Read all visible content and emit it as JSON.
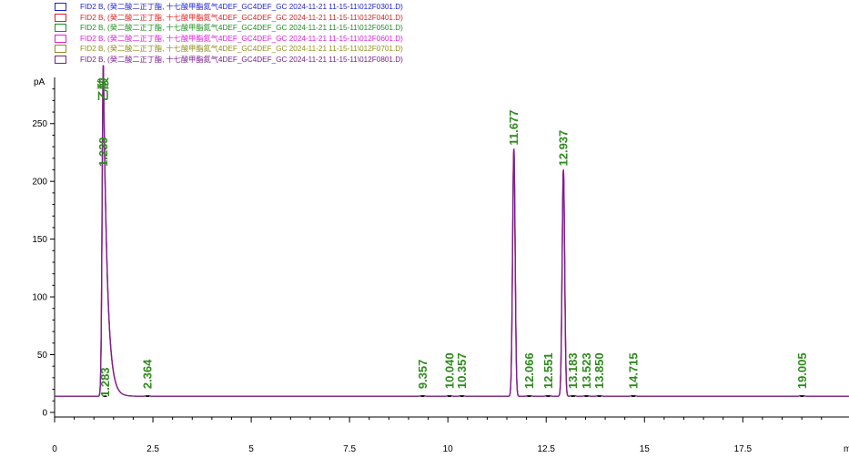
{
  "legend": [
    {
      "text": "FID2 B, (癸二酸二正丁酯, 十七酸甲酯氮气4DEF_GC4DEF_GC 2024-11-21 11-15-11\\012F0301.D)",
      "color": "#1f1fd6"
    },
    {
      "text": "FID2 B, (癸二酸二正丁酯, 十七酸甲酯氮气4DEF_GC4DEF_GC 2024-11-21 11-15-11\\012F0401.D)",
      "color": "#e01f1f"
    },
    {
      "text": "FID2 B, (癸二酸二正丁酯, 十七酸甲酯氮气4DEF_GC4DEF_GC 2024-11-21 11-15-11\\012F0501.D)",
      "color": "#1f8f1f"
    },
    {
      "text": "FID2 B, (癸二酸二正丁酯, 十七酸甲酯氮气4DEF_GC4DEF_GC 2024-11-21 11-15-11\\012F0601.D)",
      "color": "#e01fe0"
    },
    {
      "text": "FID2 B, (癸二酸二正丁酯, 十七酸甲酯氮气4DEF_GC4DEF_GC 2024-11-21 11-15-11\\012F0701.D)",
      "color": "#8f8f1f"
    },
    {
      "text": "FID2 B, (癸二酸二正丁酯, 十七酸甲酯氮气4DEF_GC4DEF_GC 2024-11-21 11-15-11\\012F0801.D)",
      "color": "#7a1f8f"
    }
  ],
  "chart_data": {
    "type": "line",
    "ylabel": "pA",
    "xlabel": "mi",
    "xlim": [
      0,
      20.2
    ],
    "ylim": [
      -4,
      290
    ],
    "x_ticks": [
      0,
      2.5,
      5,
      7.5,
      10,
      12.5,
      15,
      17.5
    ],
    "x_tick_labels": [
      "0",
      "2.5",
      "5",
      "7.5",
      "10",
      "12.5",
      "15",
      "17.5"
    ],
    "y_ticks": [
      0,
      50,
      100,
      150,
      200,
      250
    ],
    "y_tick_labels": [
      "0",
      "50",
      "100",
      "150",
      "200",
      "250"
    ],
    "baseline": 14,
    "peaks": [
      {
        "rt": 1.239,
        "label": "1.239",
        "height": 288,
        "width": 0.03,
        "tail": 0.28
      },
      {
        "rt": 1.283,
        "label": "1.283",
        "height": 3,
        "width": 0.05
      },
      {
        "rt": 2.364,
        "label": "2.364",
        "height": 0.3,
        "width": 0.05
      },
      {
        "rt": 9.357,
        "label": "9.357",
        "height": 0.4,
        "width": 0.05
      },
      {
        "rt": 10.04,
        "label": "10.040",
        "height": 0.4,
        "width": 0.05
      },
      {
        "rt": 10.357,
        "label": "10.357",
        "height": 0.4,
        "width": 0.05
      },
      {
        "rt": 11.677,
        "label": "11.677",
        "height": 214,
        "width": 0.032
      },
      {
        "rt": 12.066,
        "label": "12.066",
        "height": 0.5,
        "width": 0.05
      },
      {
        "rt": 12.551,
        "label": "12.551",
        "height": 0.5,
        "width": 0.05
      },
      {
        "rt": 12.937,
        "label": "12.937",
        "height": 196,
        "width": 0.032
      },
      {
        "rt": 13.183,
        "label": "13.183",
        "height": 0.5,
        "width": 0.05
      },
      {
        "rt": 13.523,
        "label": "13.523",
        "height": 0.5,
        "width": 0.05
      },
      {
        "rt": 13.85,
        "label": "13.850",
        "height": 0.5,
        "width": 0.05
      },
      {
        "rt": 14.715,
        "label": "14.715",
        "height": 0.5,
        "width": 0.05
      },
      {
        "rt": 19.005,
        "label": "19.005",
        "height": 0.5,
        "width": 0.05
      }
    ],
    "top_label": "乙酸",
    "series_colors": [
      "#1f1fd6",
      "#e01f1f",
      "#1f8f1f",
      "#e01fe0",
      "#8f8f1f",
      "#7a1f8f"
    ],
    "grid": false
  }
}
